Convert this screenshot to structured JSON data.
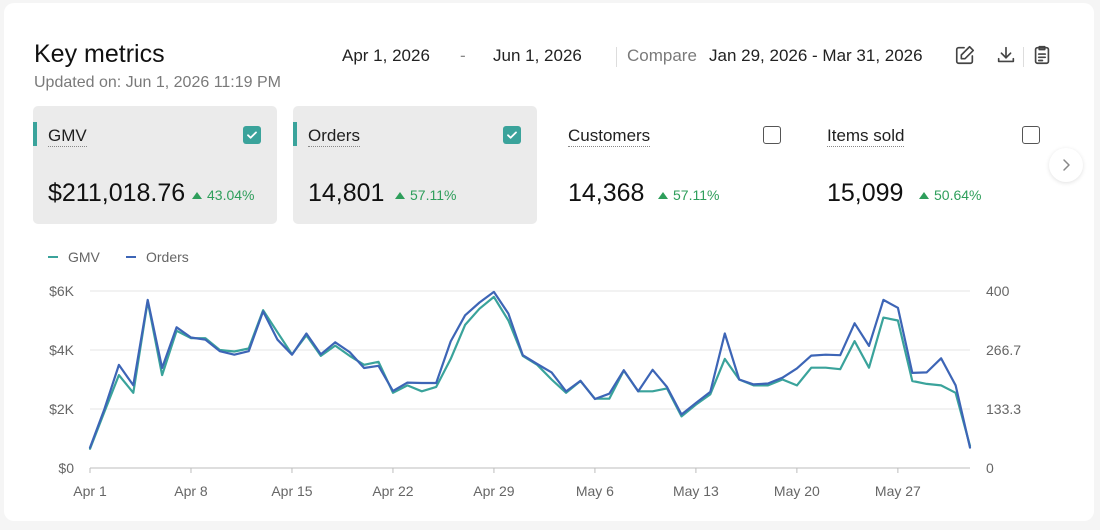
{
  "header": {
    "title": "Key metrics",
    "updated": "Updated on: Jun 1, 2026 11:19 PM",
    "date_start": "Apr 1, 2026",
    "date_separator": "-",
    "date_end": "Jun 1, 2026",
    "compare_label": "Compare",
    "compare_range": "Jan 29, 2026 - Mar 31, 2026",
    "tools": [
      "edit-icon",
      "download-icon",
      "clipboard-icon"
    ]
  },
  "metrics": [
    {
      "label": "GMV",
      "value": "$211,018.76",
      "change": "43.04%",
      "selected": true
    },
    {
      "label": "Orders",
      "value": "14,801",
      "change": "57.11%",
      "selected": true
    },
    {
      "label": "Customers",
      "value": "14,368",
      "change": "57.11%",
      "selected": false
    },
    {
      "label": "Items sold",
      "value": "15,099",
      "change": "50.64%",
      "selected": false
    }
  ],
  "legend": [
    "GMV",
    "Orders"
  ],
  "colors": {
    "gmv": "#3aa39b",
    "orders": "#3d65b6",
    "positive": "#2e9e5b"
  },
  "chart_data": {
    "type": "line",
    "x_tick_labels": [
      "Apr 1",
      "Apr 8",
      "Apr 15",
      "Apr 22",
      "Apr 29",
      "May 6",
      "May 13",
      "May 20",
      "May 27"
    ],
    "x_start": "Apr 1",
    "x_end": "May 31",
    "y_left": {
      "ticks": [
        "$0",
        "$2K",
        "$4K",
        "$6K"
      ],
      "range": [
        0,
        6000
      ]
    },
    "y_right": {
      "ticks": [
        "0",
        "133.3",
        "266.7",
        "400"
      ],
      "range": [
        0,
        400
      ]
    },
    "grid": true,
    "legend_position": "top-left",
    "series": [
      {
        "name": "GMV",
        "axis": "left",
        "values": [
          650,
          1900,
          3150,
          2550,
          5650,
          3150,
          4650,
          4400,
          4400,
          4000,
          3950,
          4050,
          5350,
          4600,
          3850,
          4500,
          3800,
          4150,
          3800,
          3500,
          3600,
          2550,
          2800,
          2600,
          2750,
          3700,
          4850,
          5400,
          5800,
          5000,
          3800,
          3500,
          3000,
          2550,
          2950,
          2350,
          2350,
          3300,
          2600,
          2600,
          2700,
          1750,
          2150,
          2500,
          3700,
          3000,
          2800,
          2800,
          3000,
          2800,
          3400,
          3400,
          3350,
          4300,
          3400,
          5100,
          5000,
          2950,
          2850,
          2800,
          2550,
          750
        ]
      },
      {
        "name": "Orders",
        "axis": "right",
        "values": [
          46,
          133,
          233,
          187,
          380,
          226,
          318,
          295,
          290,
          264,
          256,
          264,
          354,
          290,
          256,
          304,
          257,
          284,
          262,
          226,
          231,
          174,
          193,
          192,
          192,
          286,
          345,
          374,
          398,
          349,
          255,
          235,
          216,
          173,
          197,
          156,
          168,
          221,
          173,
          222,
          183,
          121,
          147,
          172,
          304,
          200,
          189,
          191,
          204,
          225,
          254,
          256,
          255,
          327,
          276,
          380,
          362,
          215,
          216,
          248,
          187,
          46
        ]
      }
    ]
  }
}
